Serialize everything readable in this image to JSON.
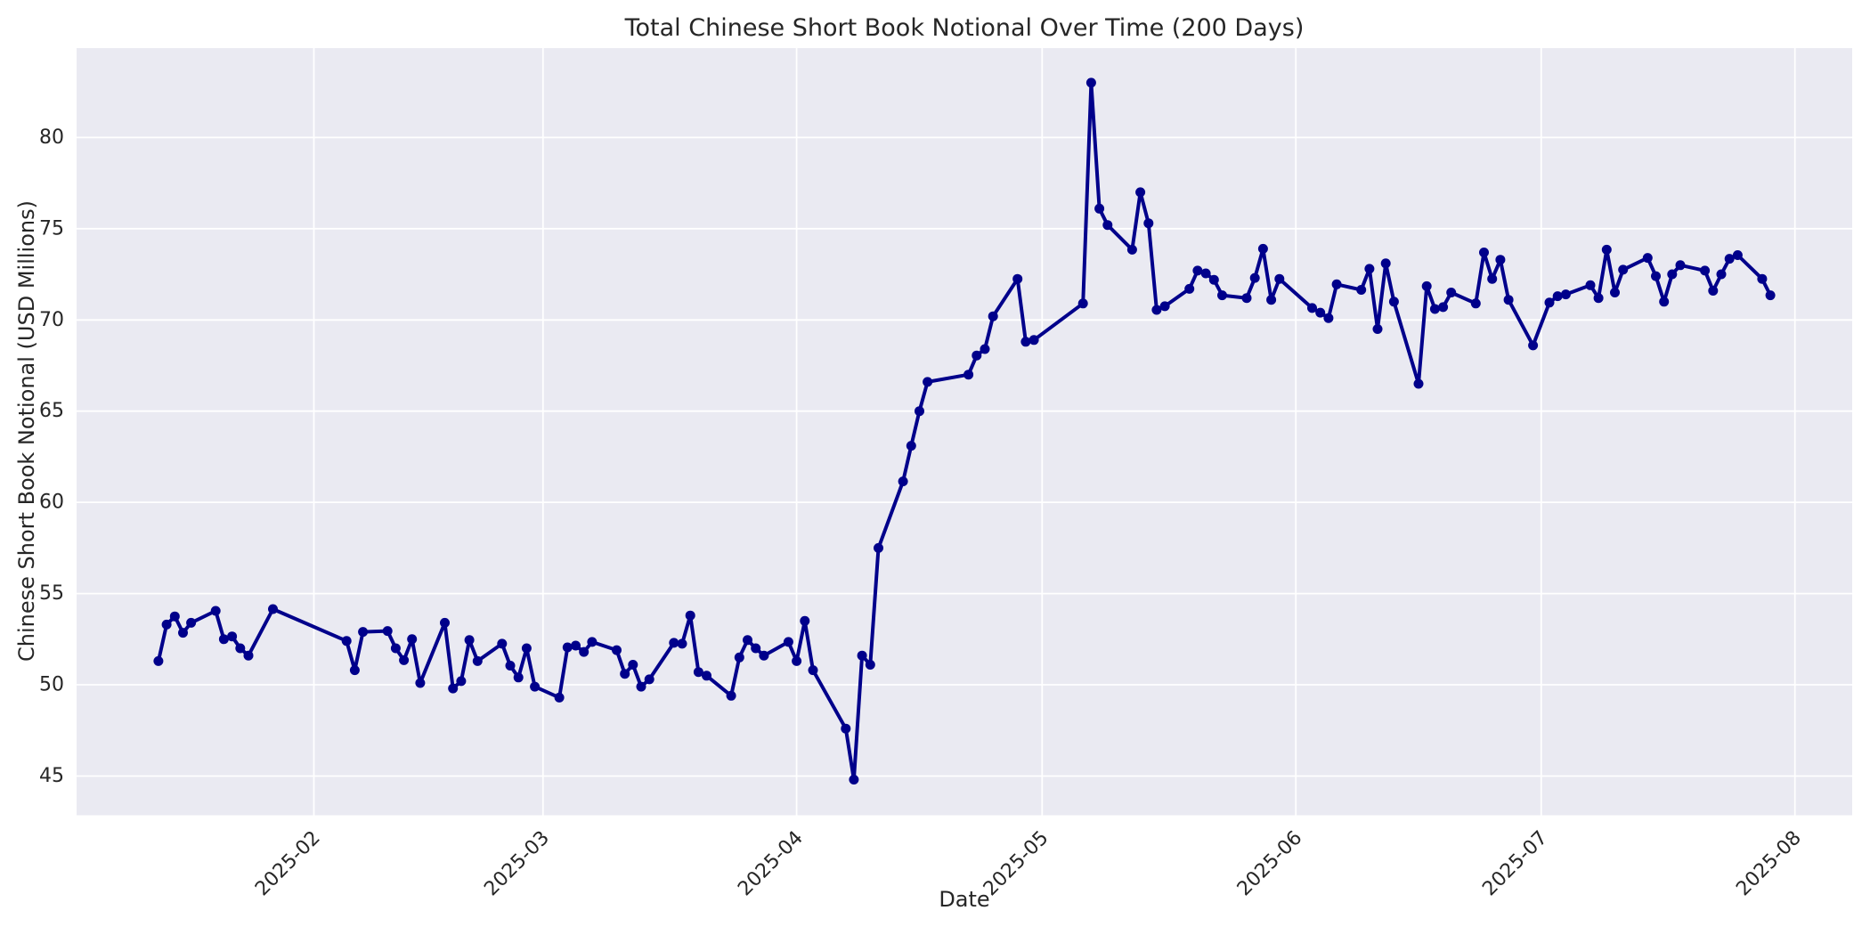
{
  "chart_data": {
    "type": "line",
    "title": "Total Chinese Short Book Notional Over Time (200 Days)",
    "xlabel": "Date",
    "ylabel": "Chinese Short Book Notional (USD Millions)",
    "legend": "none",
    "grid": true,
    "plot_bg": "#eaeaf2",
    "grid_color": "#ffffff",
    "text_color": "#262626",
    "x_tick_labels": [
      "2025-02",
      "2025-03",
      "2025-04",
      "2025-05",
      "2025-06",
      "2025-07",
      "2025-08"
    ],
    "x_tick_dates": [
      "2025-02-01",
      "2025-03-01",
      "2025-04-01",
      "2025-05-01",
      "2025-06-01",
      "2025-07-01",
      "2025-08-01"
    ],
    "y_ticks": [
      45,
      50,
      55,
      60,
      65,
      70,
      75,
      80
    ],
    "xlim": [
      "2025-01-03",
      "2025-08-08"
    ],
    "ylim": [
      42.85,
      84.9
    ],
    "series": [
      {
        "name": "Total Chinese Short Book Notional",
        "color": "#00008b",
        "marker": "circle",
        "dates": [
          "2025-01-13",
          "2025-01-14",
          "2025-01-15",
          "2025-01-16",
          "2025-01-17",
          "2025-01-20",
          "2025-01-21",
          "2025-01-22",
          "2025-01-23",
          "2025-01-24",
          "2025-01-27",
          "2025-02-05",
          "2025-02-06",
          "2025-02-07",
          "2025-02-10",
          "2025-02-11",
          "2025-02-12",
          "2025-02-13",
          "2025-02-14",
          "2025-02-17",
          "2025-02-18",
          "2025-02-19",
          "2025-02-20",
          "2025-02-21",
          "2025-02-24",
          "2025-02-25",
          "2025-02-26",
          "2025-02-27",
          "2025-02-28",
          "2025-03-03",
          "2025-03-04",
          "2025-03-05",
          "2025-03-06",
          "2025-03-07",
          "2025-03-10",
          "2025-03-11",
          "2025-03-12",
          "2025-03-13",
          "2025-03-14",
          "2025-03-17",
          "2025-03-18",
          "2025-03-19",
          "2025-03-20",
          "2025-03-21",
          "2025-03-24",
          "2025-03-25",
          "2025-03-26",
          "2025-03-27",
          "2025-03-28",
          "2025-03-31",
          "2025-04-01",
          "2025-04-02",
          "2025-04-03",
          "2025-04-07",
          "2025-04-08",
          "2025-04-09",
          "2025-04-10",
          "2025-04-11",
          "2025-04-14",
          "2025-04-15",
          "2025-04-16",
          "2025-04-17",
          "2025-04-22",
          "2025-04-23",
          "2025-04-24",
          "2025-04-25",
          "2025-04-28",
          "2025-04-29",
          "2025-04-30",
          "2025-05-06",
          "2025-05-07",
          "2025-05-08",
          "2025-05-09",
          "2025-05-12",
          "2025-05-13",
          "2025-05-14",
          "2025-05-15",
          "2025-05-16",
          "2025-05-19",
          "2025-05-20",
          "2025-05-21",
          "2025-05-22",
          "2025-05-23",
          "2025-05-26",
          "2025-05-27",
          "2025-05-28",
          "2025-05-29",
          "2025-05-30",
          "2025-06-03",
          "2025-06-04",
          "2025-06-05",
          "2025-06-06",
          "2025-06-09",
          "2025-06-10",
          "2025-06-11",
          "2025-06-12",
          "2025-06-13",
          "2025-06-16",
          "2025-06-17",
          "2025-06-18",
          "2025-06-19",
          "2025-06-20",
          "2025-06-23",
          "2025-06-24",
          "2025-06-25",
          "2025-06-26",
          "2025-06-27",
          "2025-06-30",
          "2025-07-02",
          "2025-07-03",
          "2025-07-04",
          "2025-07-07",
          "2025-07-08",
          "2025-07-09",
          "2025-07-10",
          "2025-07-11",
          "2025-07-14",
          "2025-07-15",
          "2025-07-16",
          "2025-07-17",
          "2025-07-18",
          "2025-07-21",
          "2025-07-22",
          "2025-07-23",
          "2025-07-24",
          "2025-07-25",
          "2025-07-28",
          "2025-07-29"
        ],
        "values": [
          51.3,
          53.3,
          53.75,
          52.85,
          53.4,
          54.05,
          52.5,
          52.65,
          52.0,
          51.6,
          54.15,
          52.4,
          50.8,
          52.9,
          52.95,
          52.0,
          51.35,
          52.5,
          50.1,
          53.4,
          49.8,
          50.2,
          52.45,
          51.3,
          52.25,
          51.05,
          50.4,
          52.0,
          49.9,
          49.3,
          52.05,
          52.15,
          51.8,
          52.35,
          51.9,
          50.6,
          51.1,
          49.9,
          50.3,
          52.3,
          52.25,
          53.8,
          50.7,
          50.5,
          49.4,
          51.5,
          52.45,
          52.0,
          51.6,
          52.35,
          51.3,
          53.5,
          50.8,
          47.6,
          44.8,
          51.6,
          51.1,
          57.5,
          61.15,
          63.1,
          65.0,
          66.6,
          67.0,
          68.05,
          68.4,
          70.2,
          72.25,
          68.8,
          68.9,
          70.9,
          83.0,
          76.1,
          75.2,
          73.85,
          77.0,
          75.3,
          70.55,
          70.75,
          71.7,
          72.7,
          72.55,
          72.2,
          71.35,
          71.2,
          72.3,
          73.9,
          71.1,
          72.25,
          70.65,
          70.4,
          70.1,
          71.95,
          71.65,
          72.8,
          69.5,
          73.1,
          71.0,
          66.5,
          71.85,
          70.6,
          70.7,
          71.5,
          70.9,
          73.7,
          72.25,
          73.3,
          71.1,
          68.6,
          70.95,
          71.3,
          71.4,
          71.9,
          71.2,
          73.85,
          71.5,
          72.75,
          73.4,
          72.4,
          71.0,
          72.5,
          73.0,
          72.7,
          71.6,
          72.5,
          73.35,
          73.55,
          72.25,
          71.35
        ]
      }
    ]
  }
}
